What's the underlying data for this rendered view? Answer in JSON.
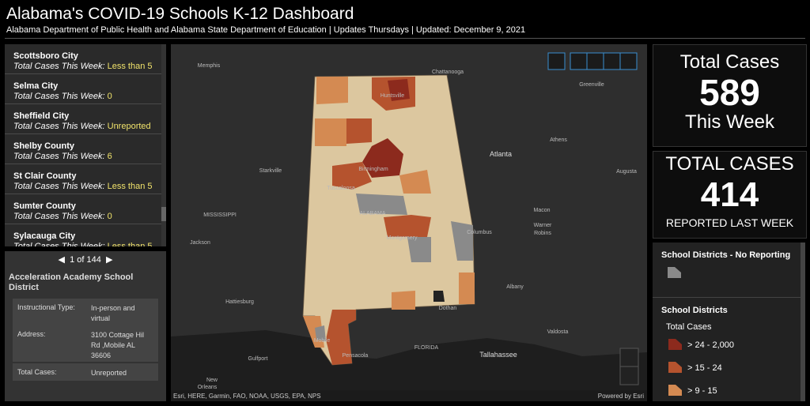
{
  "header": {
    "title": "Alabama's COVID-19 Schools K-12 Dashboard",
    "subtitle": "Alabama Department of Public Health and Alabama State Department of Education | Updates Thursdays | Updated: December 9, 2021"
  },
  "list": [
    {
      "name": "Scottsboro City",
      "label": "Total Cases This Week:",
      "value": "Less than 5"
    },
    {
      "name": "Selma City",
      "label": "Total Cases This Week:",
      "value": "0"
    },
    {
      "name": "Sheffield City",
      "label": "Total Cases This Week:",
      "value": "Unreported"
    },
    {
      "name": "Shelby County",
      "label": "Total Cases This Week:",
      "value": "6"
    },
    {
      "name": "St Clair County",
      "label": "Total Cases This Week:",
      "value": "Less than 5"
    },
    {
      "name": "Sumter County",
      "label": "Total Cases This Week:",
      "value": "0"
    },
    {
      "name": "Sylacauga City",
      "label": "Total Cases This Week:",
      "value": "Less than 5"
    }
  ],
  "detail": {
    "pager": "1 of 144",
    "title": "Acceleration Academy School District",
    "rows": [
      [
        "Instructional Type:",
        "In-person and virtual"
      ],
      [
        "Address:",
        "3100 Cottage Hil Rd ,Mobile AL 36606"
      ],
      [
        "Total Cases:",
        "Unreported"
      ]
    ]
  },
  "map": {
    "labels": [
      "Memphis",
      "Chattanooga",
      "Huntsville",
      "Greenville",
      "Athens",
      "Atlanta",
      "Birmingham",
      "Starkville",
      "Tuscaloosa",
      "Augusta",
      "MISSISSIPPI",
      "ALABAMA",
      "Macon",
      "Warner",
      "Robins",
      "Jackson",
      "Montgomery",
      "Columbus",
      "Albany",
      "Hattiesburg",
      "Dothan",
      "Valdosta",
      "Mobile",
      "Gulfport",
      "Pensacola",
      "FLORIDA",
      "Tallahassee",
      "New",
      "Orleans"
    ],
    "attribution": "Esri, HERE, Garmin, FAO, NOAA, USGS, EPA, NPS",
    "powered_by": "Powered by Esri"
  },
  "stats": [
    {
      "heading": "Total Cases",
      "value": 589,
      "caption": "This Week"
    },
    {
      "heading": "TOTAL CASES",
      "value": 414,
      "caption": "REPORTED LAST WEEK"
    }
  ],
  "legend": {
    "no_reporting_title": "School Districts - No Reporting",
    "no_reporting_color": "#8a8a8a",
    "districts_title": "School Districts",
    "subtitle": "Total Cases",
    "items": [
      {
        "label": "> 24 - 2,000",
        "color": "#8c2a1d"
      },
      {
        "label": "> 15 - 24",
        "color": "#b5532e"
      },
      {
        "label": "> 9 - 15",
        "color": "#d48a52"
      }
    ]
  }
}
